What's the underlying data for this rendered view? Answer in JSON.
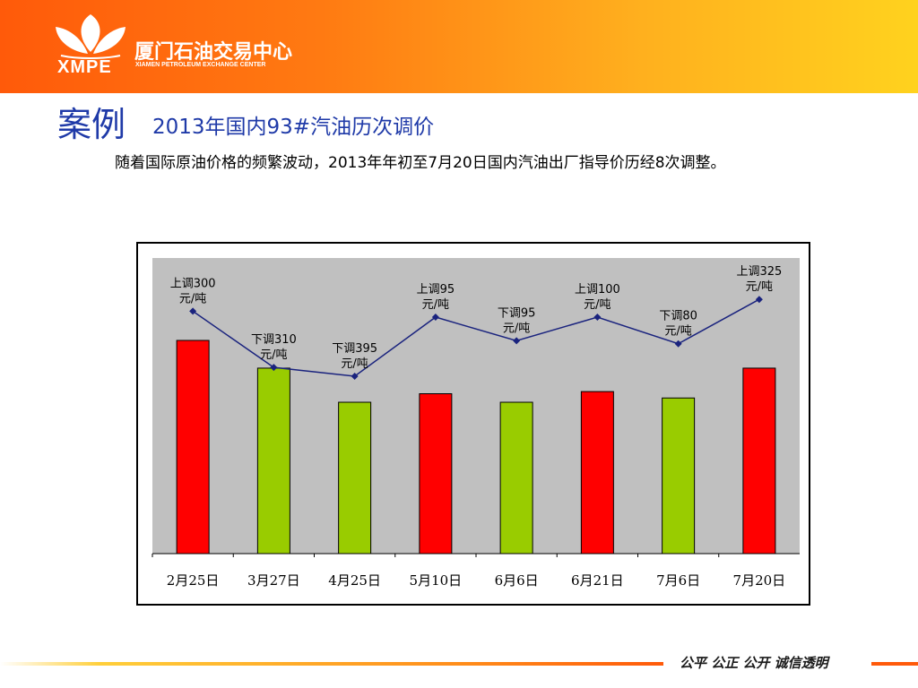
{
  "header": {
    "logo_abbr": "XMPE",
    "logo_cn": "厦门石油交易中心",
    "logo_en": "XIAMEN PETROLEUM EXCHANGE CENTER",
    "gradient_colors": [
      "#ff5a0a",
      "#ffd21e"
    ]
  },
  "title": {
    "main": "案例",
    "sub": "2013年国内93#汽油历次调价"
  },
  "paragraph": "随着国际原油价格的频繁波动，2013年年初至7月20日国内汽油出厂指导价历经8次调整。",
  "chart_data": {
    "type": "bar",
    "categories": [
      "2月25日",
      "3月27日",
      "4月25日",
      "5月10日",
      "6月6日",
      "6月21日",
      "7月6日",
      "7月20日"
    ],
    "bar_colors": [
      "#ff0000",
      "#99cc00",
      "#99cc00",
      "#ff0000",
      "#99cc00",
      "#ff0000",
      "#99cc00",
      "#ff0000"
    ],
    "values": [
      300,
      310,
      395,
      95,
      95,
      100,
      80,
      325
    ],
    "directions": [
      "up",
      "down",
      "down",
      "up",
      "down",
      "up",
      "down",
      "up"
    ],
    "relative_bar_heights": [
      1.0,
      0.87,
      0.71,
      0.75,
      0.71,
      0.76,
      0.73,
      0.87
    ],
    "line_levels": [
      0.82,
      0.63,
      0.6,
      0.8,
      0.72,
      0.8,
      0.71,
      0.86
    ],
    "data_labels": [
      {
        "line1": "上调300",
        "line2": "元/吨"
      },
      {
        "line1": "下调310",
        "line2": "元/吨"
      },
      {
        "line1": "下调395",
        "line2": "元/吨"
      },
      {
        "line1": "上调95",
        "line2": "元/吨"
      },
      {
        "line1": "下调95",
        "line2": "元/吨"
      },
      {
        "line1": "上调100",
        "line2": "元/吨"
      },
      {
        "line1": "下调80",
        "line2": "元/吨"
      },
      {
        "line1": "上调325",
        "line2": "元/吨"
      }
    ],
    "title": "",
    "xlabel": "",
    "ylabel": "",
    "grid": false,
    "plot_background": "#c0c0c0",
    "line_color": "#1a237e",
    "marker_color": "#1a237e"
  },
  "footer": {
    "slogan": "公平  公正  公开  诚信透明"
  }
}
